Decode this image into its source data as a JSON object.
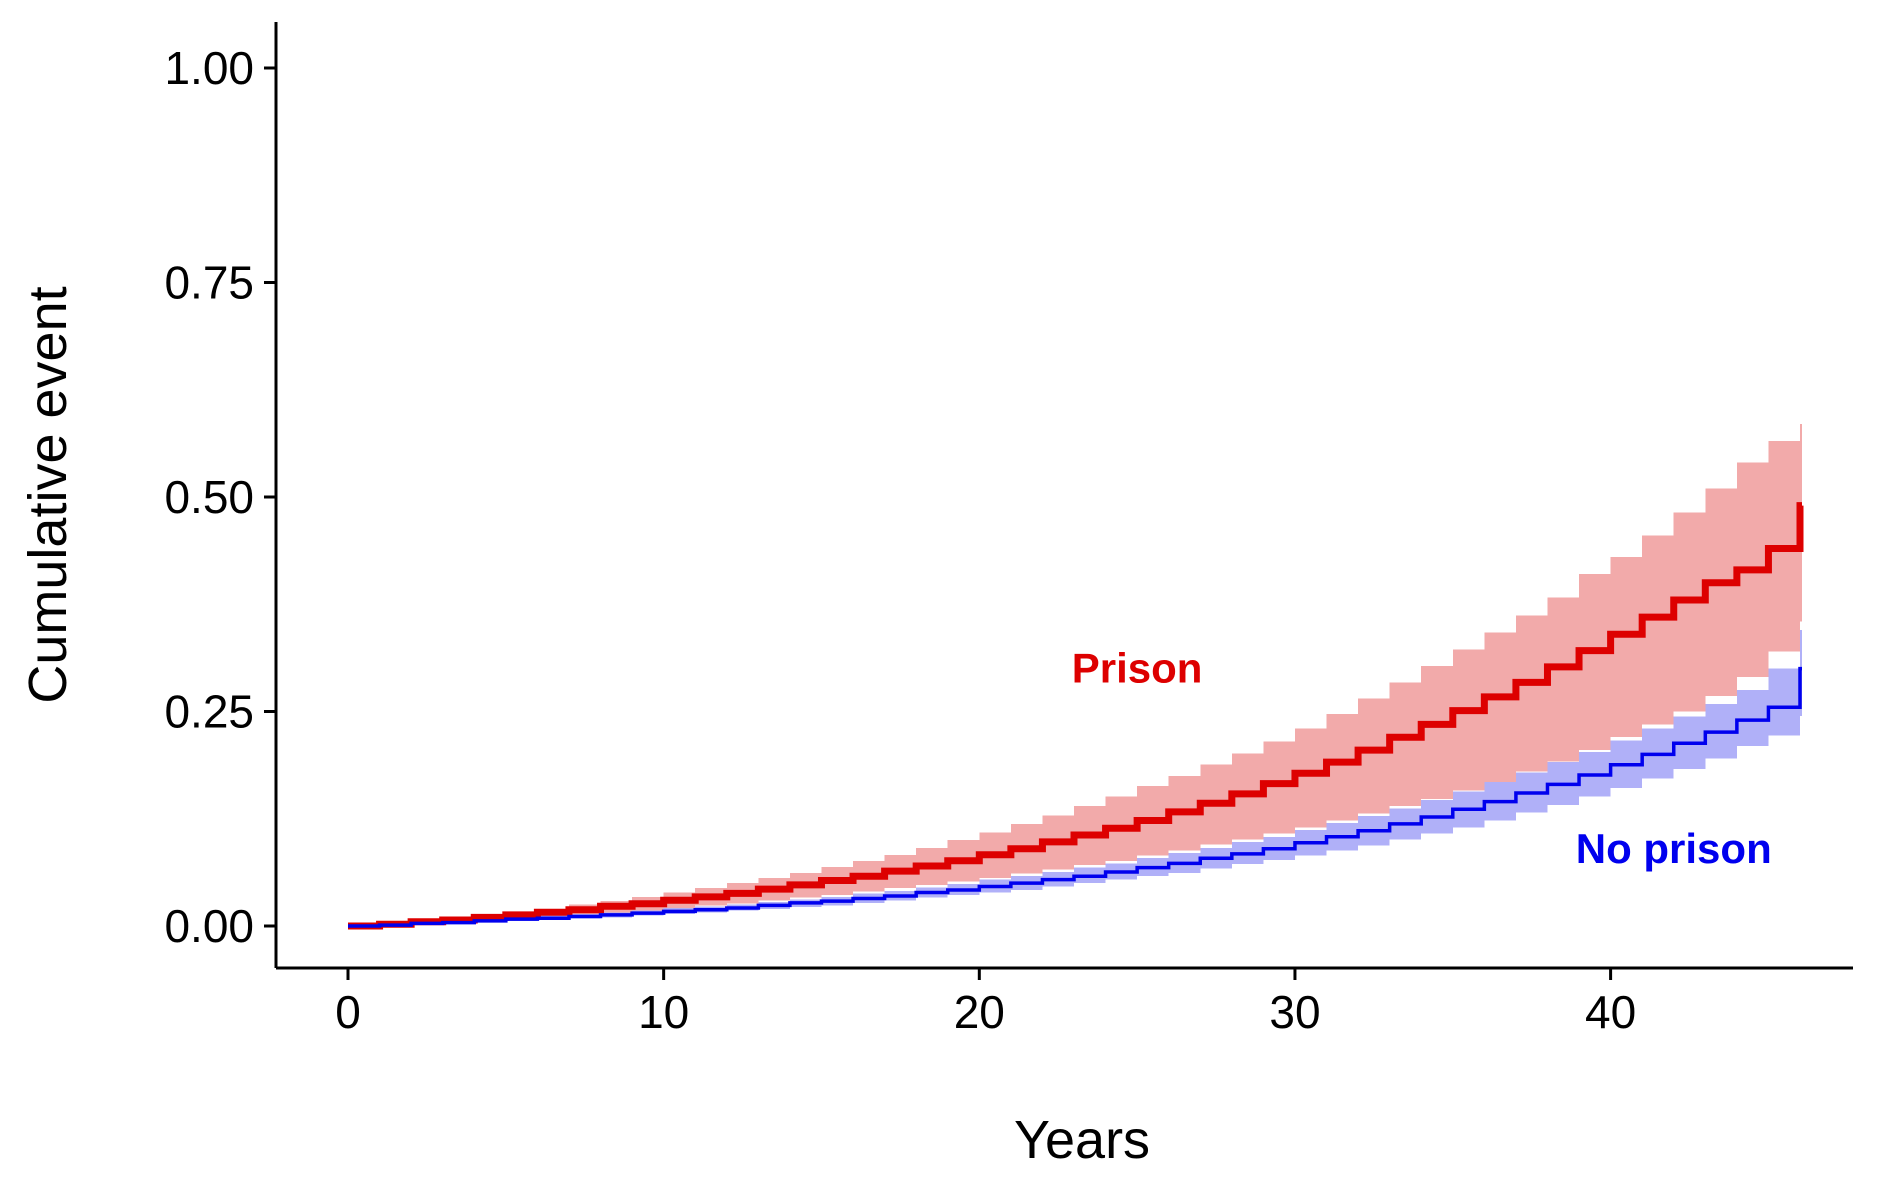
{
  "chart_data": {
    "type": "line",
    "subtype": "step-with-confidence-band",
    "title": "",
    "xlabel": "Years",
    "ylabel": "Cumulative event",
    "xlim": [
      0,
      46
    ],
    "ylim": [
      0,
      1
    ],
    "x_ticks": [
      0,
      10,
      20,
      30,
      40
    ],
    "x_tick_labels": [
      "0",
      "10",
      "20",
      "30",
      "40"
    ],
    "y_ticks": [
      0,
      0.25,
      0.5,
      0.75,
      1.0
    ],
    "y_tick_labels": [
      "0.00",
      "0.25",
      "0.50",
      "0.75",
      "1.00"
    ],
    "grid": false,
    "legend": "none (direct labels on plot)",
    "annotations": [
      {
        "text": "Prison",
        "x": 25,
        "y": 0.3,
        "color": "#dd0000"
      },
      {
        "text": "No prison",
        "x": 42,
        "y": 0.09,
        "color": "#0000ee"
      }
    ],
    "series": [
      {
        "name": "Prison",
        "color": "#dd0000",
        "band_color": "#f2aaaa",
        "x": [
          0,
          1,
          2,
          3,
          4,
          5,
          6,
          7,
          8,
          9,
          10,
          11,
          12,
          13,
          14,
          15,
          16,
          17,
          18,
          19,
          20,
          21,
          22,
          23,
          24,
          25,
          26,
          27,
          28,
          29,
          30,
          31,
          32,
          33,
          34,
          35,
          36,
          37,
          38,
          39,
          40,
          41,
          42,
          43,
          44,
          45,
          46
        ],
        "estimate": [
          0,
          0.002,
          0.005,
          0.007,
          0.01,
          0.013,
          0.016,
          0.019,
          0.023,
          0.026,
          0.03,
          0.034,
          0.038,
          0.043,
          0.048,
          0.053,
          0.058,
          0.064,
          0.07,
          0.076,
          0.083,
          0.09,
          0.098,
          0.106,
          0.114,
          0.123,
          0.133,
          0.143,
          0.154,
          0.166,
          0.178,
          0.191,
          0.205,
          0.22,
          0.235,
          0.251,
          0.267,
          0.284,
          0.302,
          0.321,
          0.34,
          0.36,
          0.38,
          0.4,
          0.415,
          0.44,
          0.49
        ],
        "lower": [
          0,
          0.001,
          0.003,
          0.005,
          0.007,
          0.009,
          0.011,
          0.013,
          0.016,
          0.018,
          0.021,
          0.024,
          0.026,
          0.03,
          0.033,
          0.036,
          0.04,
          0.044,
          0.048,
          0.052,
          0.056,
          0.061,
          0.066,
          0.071,
          0.076,
          0.082,
          0.088,
          0.095,
          0.101,
          0.108,
          0.115,
          0.123,
          0.131,
          0.14,
          0.148,
          0.158,
          0.168,
          0.18,
          0.192,
          0.205,
          0.22,
          0.235,
          0.25,
          0.268,
          0.29,
          0.32,
          0.355
        ],
        "upper": [
          0,
          0.003,
          0.006,
          0.009,
          0.013,
          0.016,
          0.02,
          0.025,
          0.029,
          0.034,
          0.039,
          0.044,
          0.05,
          0.056,
          0.062,
          0.069,
          0.076,
          0.083,
          0.091,
          0.1,
          0.109,
          0.119,
          0.129,
          0.14,
          0.151,
          0.163,
          0.175,
          0.188,
          0.201,
          0.215,
          0.23,
          0.247,
          0.265,
          0.284,
          0.303,
          0.322,
          0.342,
          0.362,
          0.383,
          0.41,
          0.43,
          0.455,
          0.482,
          0.51,
          0.54,
          0.565,
          0.585
        ]
      },
      {
        "name": "No prison",
        "color": "#0000ee",
        "band_color": "#b0b0f8",
        "x": [
          0,
          1,
          2,
          3,
          4,
          5,
          6,
          7,
          8,
          9,
          10,
          11,
          12,
          13,
          14,
          15,
          16,
          17,
          18,
          19,
          20,
          21,
          22,
          23,
          24,
          25,
          26,
          27,
          28,
          29,
          30,
          31,
          32,
          33,
          34,
          35,
          36,
          37,
          38,
          39,
          40,
          41,
          42,
          43,
          44,
          45,
          46
        ],
        "estimate": [
          0,
          0.001,
          0.003,
          0.004,
          0.006,
          0.008,
          0.009,
          0.011,
          0.013,
          0.015,
          0.017,
          0.019,
          0.021,
          0.024,
          0.027,
          0.029,
          0.032,
          0.035,
          0.039,
          0.042,
          0.046,
          0.05,
          0.054,
          0.058,
          0.063,
          0.068,
          0.073,
          0.079,
          0.084,
          0.09,
          0.097,
          0.104,
          0.111,
          0.119,
          0.127,
          0.136,
          0.145,
          0.155,
          0.165,
          0.176,
          0.188,
          0.2,
          0.213,
          0.226,
          0.24,
          0.255,
          0.3
        ],
        "lower": [
          0,
          0,
          0.002,
          0.003,
          0.004,
          0.006,
          0.007,
          0.009,
          0.01,
          0.012,
          0.014,
          0.016,
          0.018,
          0.02,
          0.022,
          0.024,
          0.027,
          0.03,
          0.033,
          0.036,
          0.039,
          0.042,
          0.046,
          0.05,
          0.054,
          0.058,
          0.062,
          0.067,
          0.072,
          0.077,
          0.082,
          0.088,
          0.094,
          0.101,
          0.108,
          0.115,
          0.123,
          0.132,
          0.141,
          0.151,
          0.161,
          0.172,
          0.183,
          0.195,
          0.21,
          0.222,
          0.245
        ],
        "upper": [
          0,
          0.002,
          0.004,
          0.006,
          0.008,
          0.01,
          0.012,
          0.014,
          0.016,
          0.018,
          0.021,
          0.023,
          0.025,
          0.028,
          0.031,
          0.034,
          0.038,
          0.041,
          0.045,
          0.049,
          0.054,
          0.058,
          0.063,
          0.068,
          0.073,
          0.079,
          0.085,
          0.091,
          0.098,
          0.104,
          0.112,
          0.12,
          0.128,
          0.137,
          0.147,
          0.157,
          0.168,
          0.179,
          0.191,
          0.203,
          0.216,
          0.23,
          0.244,
          0.259,
          0.275,
          0.3,
          0.345
        ]
      }
    ]
  }
}
